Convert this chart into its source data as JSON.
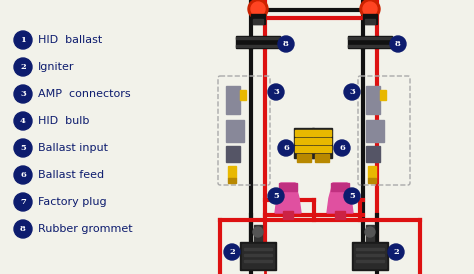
{
  "background_color": "#f2f2ea",
  "legend_items": [
    {
      "num": "1",
      "text": "HID  ballast"
    },
    {
      "num": "2",
      "text": "Igniter"
    },
    {
      "num": "3",
      "text": "AMP  connectors"
    },
    {
      "num": "4",
      "text": "HID  bulb"
    },
    {
      "num": "5",
      "text": "Ballast input"
    },
    {
      "num": "6",
      "text": "Ballast feed"
    },
    {
      "num": "7",
      "text": "Factory plug"
    },
    {
      "num": "8",
      "text": "Rubber grommet"
    }
  ],
  "circle_color": "#0d1c6e",
  "text_color": "#0d1c6e",
  "wire_red": "#dd1111",
  "wire_black": "#111111",
  "gray_dark": "#666666",
  "gray_mid": "#888899",
  "gray_light": "#aaaaaa",
  "yellow": "#e8b800",
  "yellow_dark": "#b88800",
  "pink": "#e050a0",
  "pink_dark": "#c03080",
  "black_comp": "#1a1a1a",
  "dashed_color": "#aaaaaa"
}
